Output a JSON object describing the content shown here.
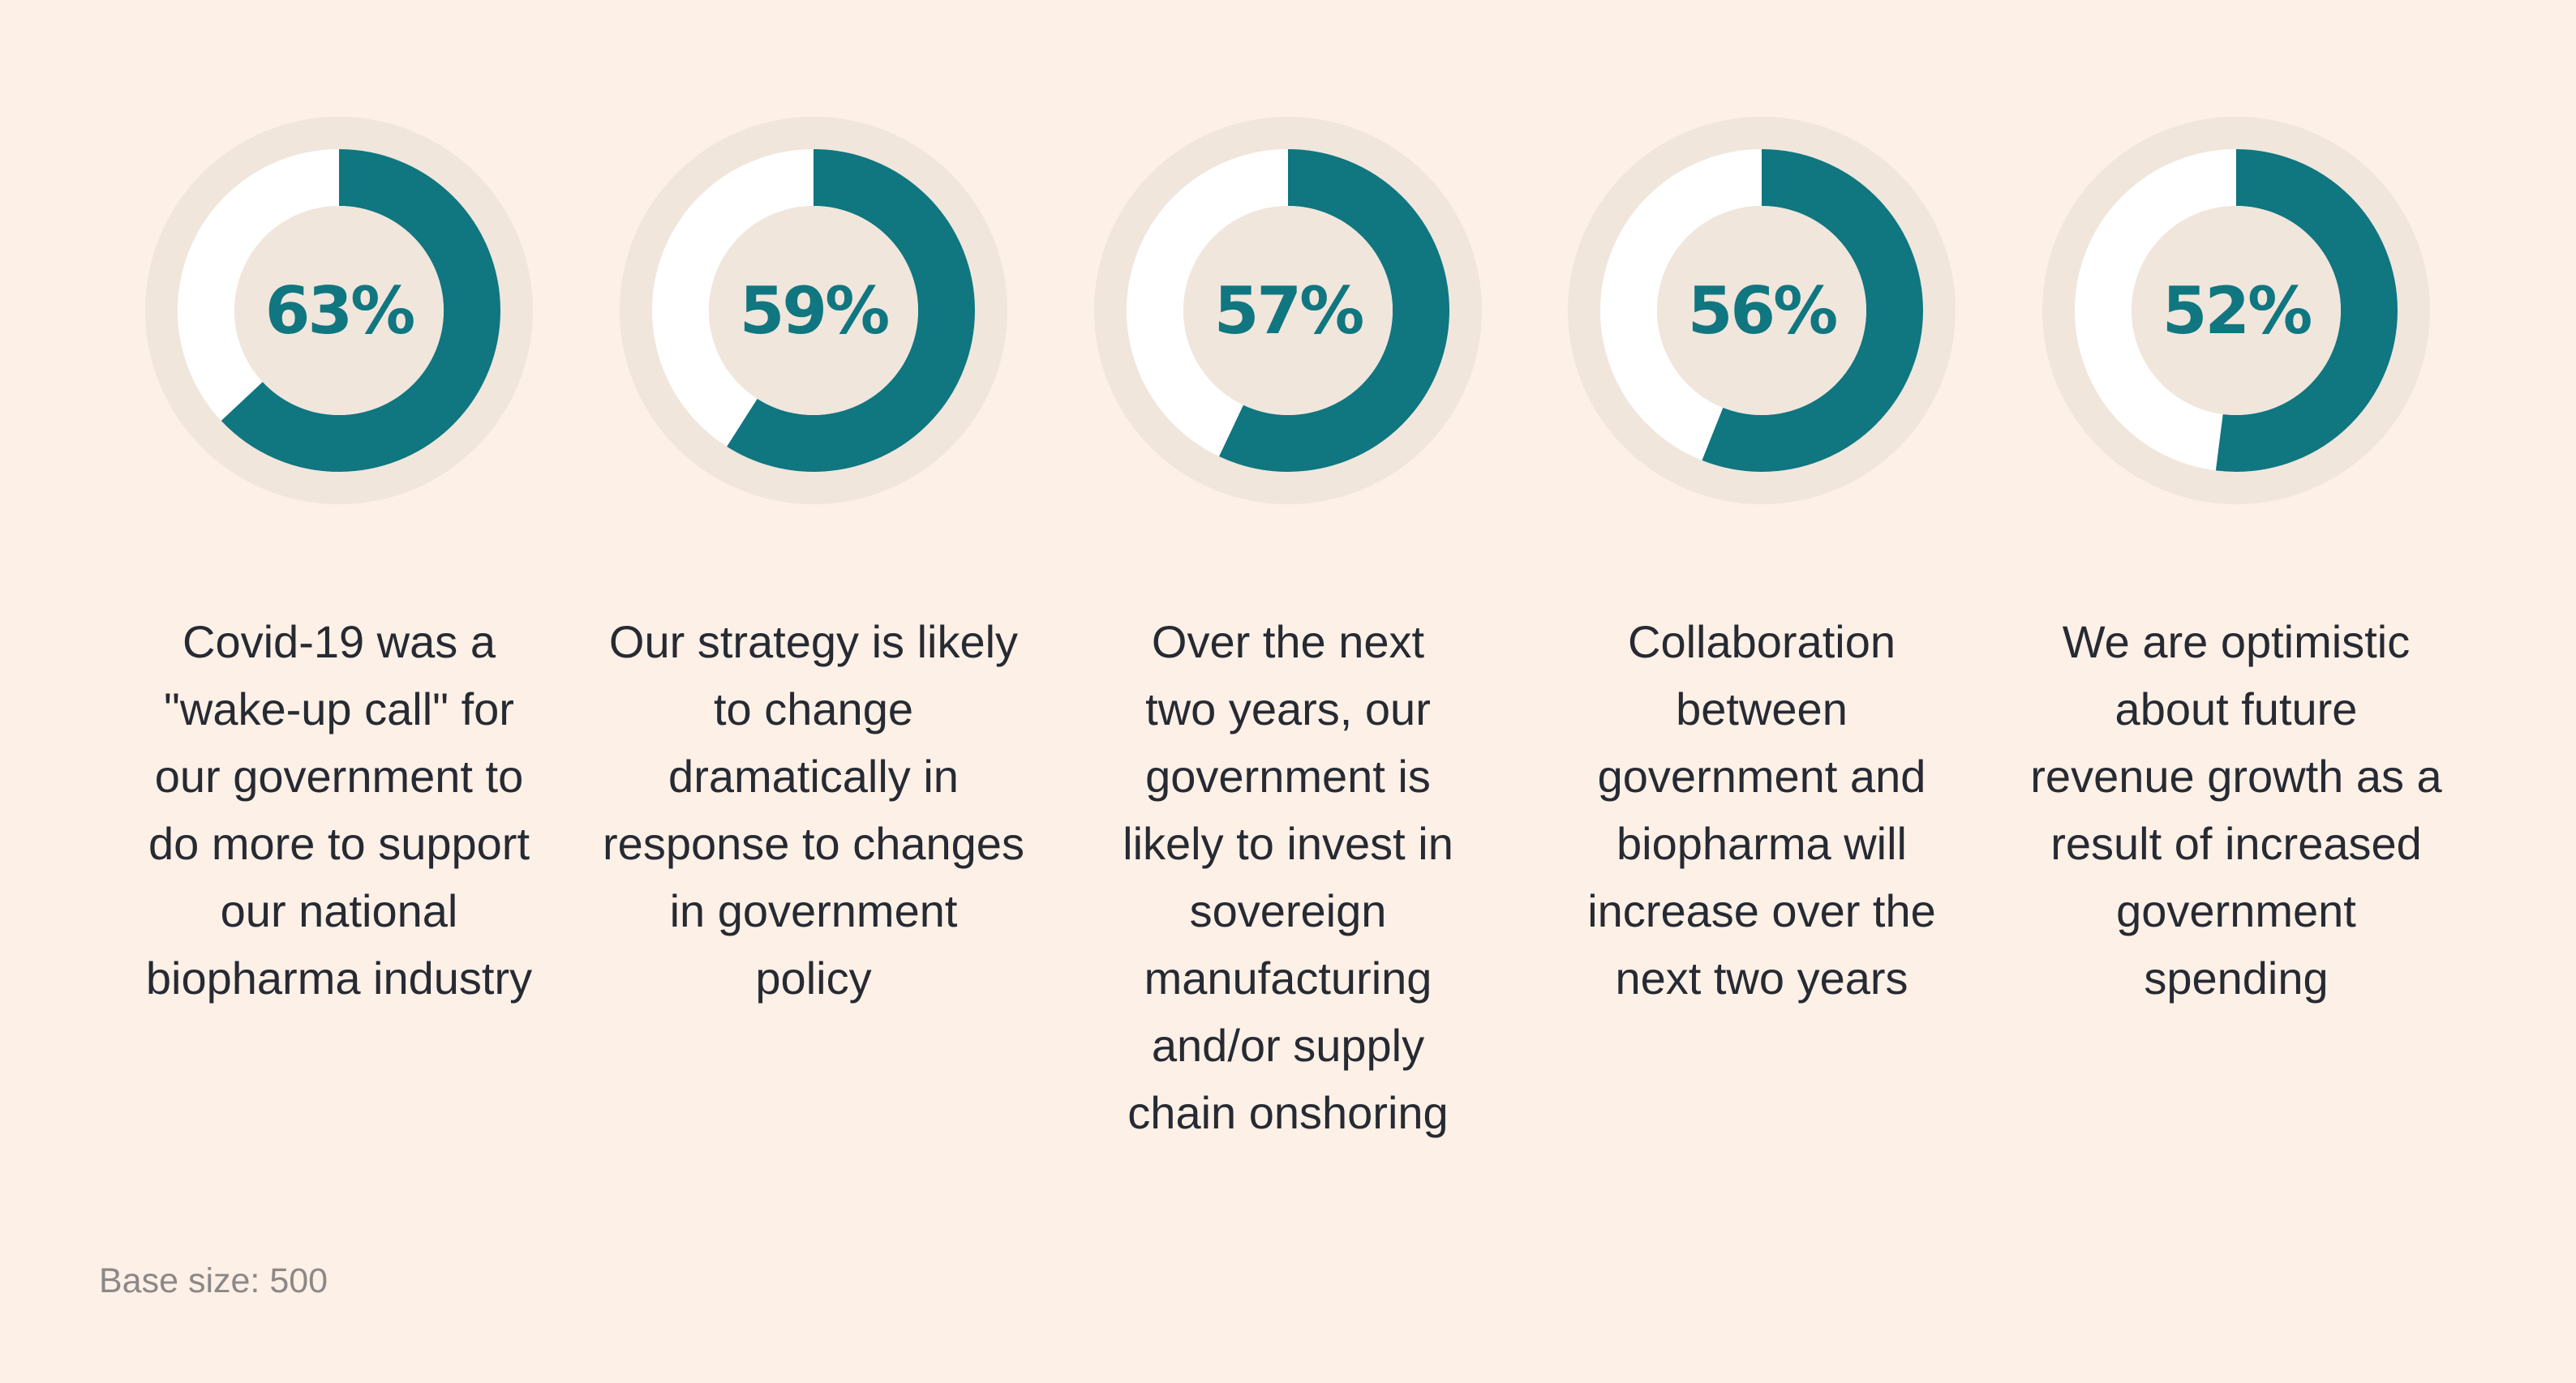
{
  "colors": {
    "background": "#fdf0e6",
    "track_outer": "#f0e6dc",
    "remainder": "#ffffff",
    "value": "#107680",
    "text": "#262a33",
    "footer": "#8c8888"
  },
  "chart_data": {
    "type": "pie",
    "subtype": "donut-set",
    "title": "",
    "unit": "%",
    "categories": [
      "Covid-19 was a \"wake-up call\" for our government to do more to support our national biopharma industry",
      "Our strategy is likely to change dramatically in response to changes in government policy",
      "Over the next two years, our government is likely to invest in sovereign manufacturing and/or supply chain onshoring",
      "Collaboration between government and biopharma will increase over the next two years",
      "We are optimistic about future revenue growth as a result of increased government spending"
    ],
    "values": [
      63,
      59,
      57,
      56,
      52
    ],
    "footnote": "Base size: 500"
  },
  "donuts": [
    {
      "value": 63,
      "display": "63%",
      "lines": [
        "Covid-19 was a",
        "\"wake-up call\" for",
        "our government to",
        "do more to support",
        "our national",
        "biopharma industry"
      ]
    },
    {
      "value": 59,
      "display": "59%",
      "lines": [
        "Our strategy is likely",
        "to change",
        "dramatically in",
        "response to changes",
        "in government",
        "policy"
      ]
    },
    {
      "value": 57,
      "display": "57%",
      "lines": [
        "Over the next",
        "two years, our",
        "government is",
        "likely to invest in",
        "sovereign",
        "manufacturing",
        "and/or supply",
        "chain onshoring"
      ]
    },
    {
      "value": 56,
      "display": "56%",
      "lines": [
        "Collaboration",
        "between",
        "government and",
        "biopharma will",
        "increase over the",
        "next two years"
      ]
    },
    {
      "value": 52,
      "display": "52%",
      "lines": [
        "We are optimistic",
        "about future",
        "revenue growth as a",
        "result of increased",
        "government",
        "spending"
      ]
    }
  ],
  "footer": {
    "base_size": "Base size: 500"
  }
}
